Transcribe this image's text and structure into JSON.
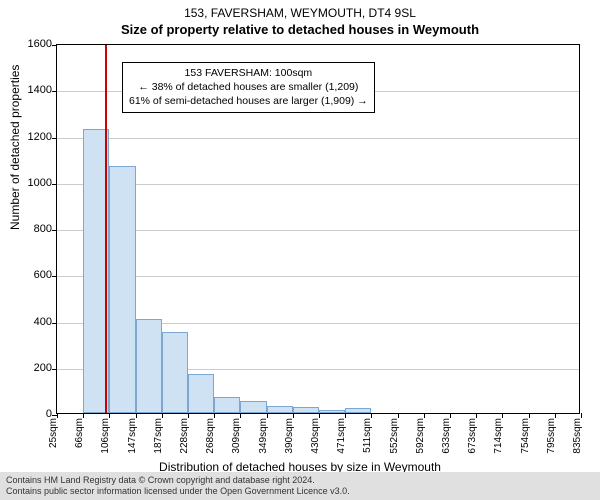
{
  "title": {
    "line1": "153, FAVERSHAM, WEYMOUTH, DT4 9SL",
    "line2": "Size of property relative to detached houses in Weymouth"
  },
  "chart": {
    "type": "histogram",
    "background_color": "#ffffff",
    "grid_color": "#cccccc",
    "bar_fill": "#cfe2f3",
    "bar_border": "#7ba7d1",
    "refline_color": "#cc0000",
    "ylim": [
      0,
      1600
    ],
    "ytick_step": 200,
    "yticks": [
      0,
      200,
      400,
      600,
      800,
      1000,
      1200,
      1400,
      1600
    ],
    "xticks": [
      "25sqm",
      "66sqm",
      "106sqm",
      "147sqm",
      "187sqm",
      "228sqm",
      "268sqm",
      "309sqm",
      "349sqm",
      "390sqm",
      "430sqm",
      "471sqm",
      "511sqm",
      "552sqm",
      "592sqm",
      "633sqm",
      "673sqm",
      "714sqm",
      "754sqm",
      "795sqm",
      "835sqm"
    ],
    "values": [
      0,
      1230,
      1070,
      405,
      350,
      170,
      70,
      50,
      30,
      25,
      15,
      20,
      0,
      0,
      0,
      0,
      0,
      0,
      0,
      0
    ],
    "reference_x_pos": 1.85,
    "y_axis_label": "Number of detached properties",
    "x_axis_label": "Distribution of detached houses by size in Weymouth",
    "label_fontsize": 12,
    "tick_fontsize": 11
  },
  "annotation": {
    "line1": "153 FAVERSHAM: 100sqm",
    "line2": "← 38% of detached houses are smaller (1,209)",
    "line3": "61% of semi-detached houses are larger (1,909) →",
    "border_color": "#000000",
    "background": "#ffffff",
    "fontsize": 10.5
  },
  "footer": {
    "line1": "Contains HM Land Registry data © Crown copyright and database right 2024.",
    "line2": "Contains public sector information licensed under the Open Government Licence v3.0.",
    "background": "#e0e0e0"
  }
}
